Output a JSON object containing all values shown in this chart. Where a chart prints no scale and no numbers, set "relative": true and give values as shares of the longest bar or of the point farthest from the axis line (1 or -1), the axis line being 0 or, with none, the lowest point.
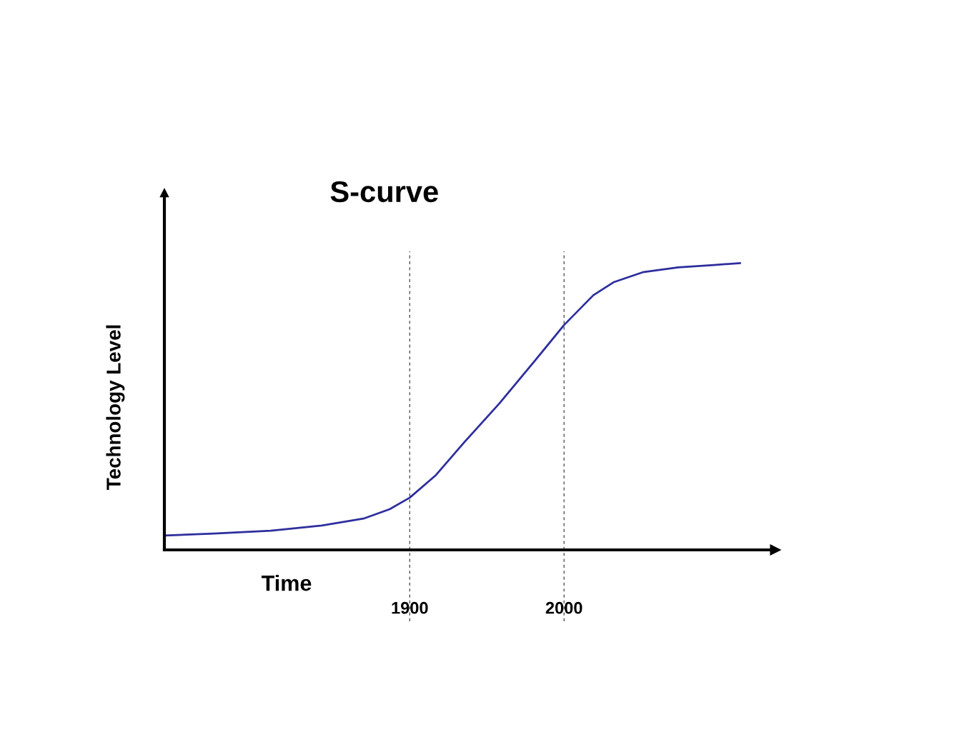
{
  "chart_data": {
    "type": "line",
    "title": "S-curve",
    "xlabel": "Time",
    "ylabel": "Technology Level",
    "relative": true,
    "x": [
      1741,
      1773,
      1810,
      1843,
      1870,
      1887,
      1900,
      1917,
      1935,
      1958,
      1981,
      2000,
      2019,
      2032,
      2051,
      2074,
      2097,
      2114
    ],
    "series": [
      {
        "color": "#2e2e9e",
        "values": [
          0.05,
          0.057,
          0.067,
          0.085,
          0.109,
          0.142,
          0.182,
          0.261,
          0.373,
          0.51,
          0.659,
          0.784,
          0.888,
          0.933,
          0.968,
          0.985,
          0.993,
          1
        ]
      }
    ],
    "xlim": [
      1741,
      2137
    ],
    "xticks": [
      1900,
      2000
    ],
    "ref_lines": [
      {
        "axis": "x",
        "value": 1900,
        "color": "#555555",
        "line_style": "dashed"
      },
      {
        "axis": "x",
        "value": 2000,
        "color": "#555555",
        "line_style": "dashed"
      }
    ],
    "grid": false,
    "marker": "none",
    "line_style": "solid"
  }
}
